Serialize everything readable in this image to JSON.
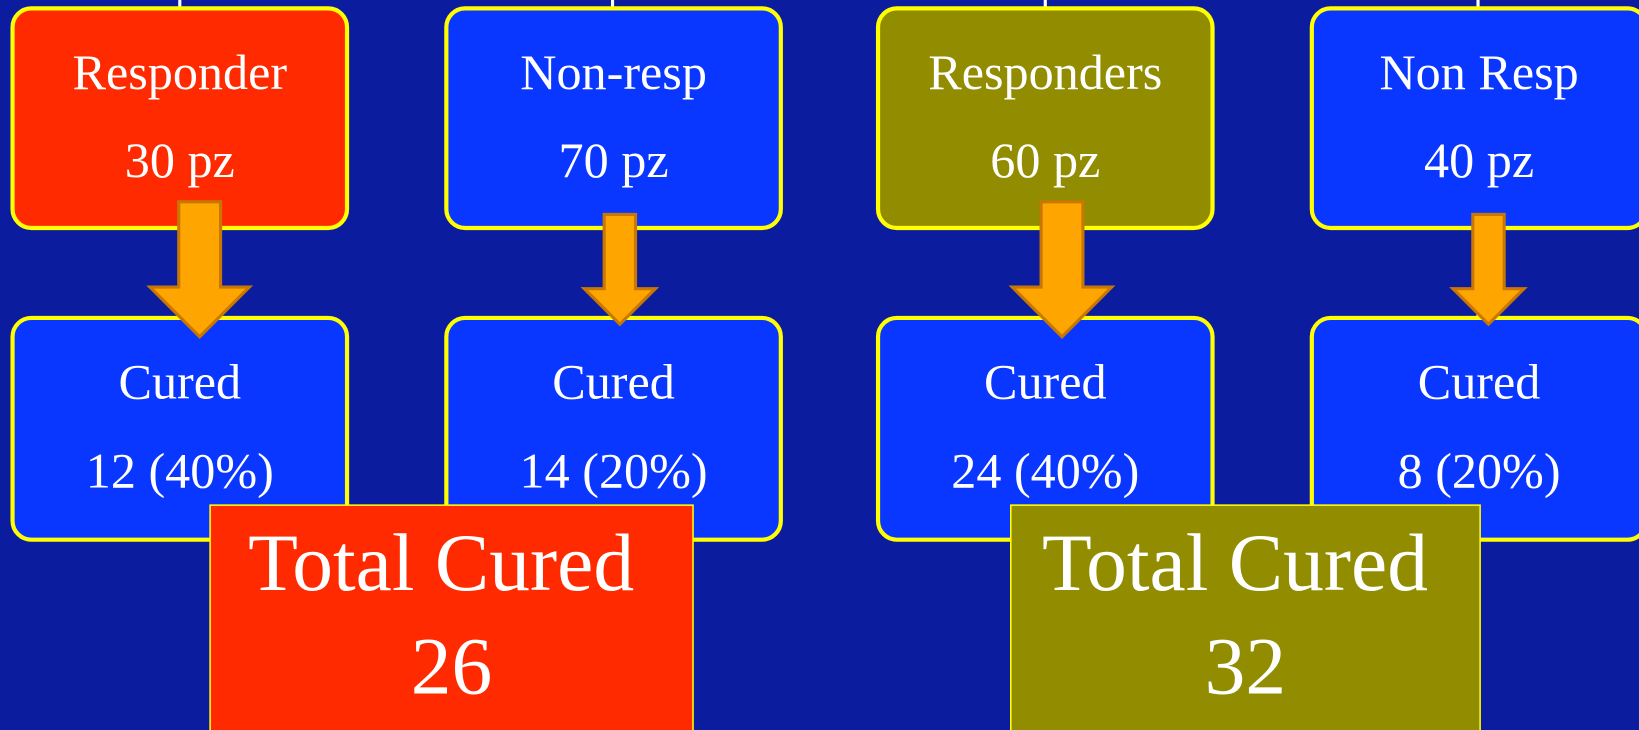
{
  "groups": [
    {
      "top": [
        {
          "label": "Responder",
          "count": "30 pz"
        },
        {
          "label": "Non-resp",
          "count": "70 pz"
        }
      ],
      "cured": [
        {
          "label": "Cured",
          "value": "12 (40%)"
        },
        {
          "label": "Cured",
          "value": "14 (20%)"
        }
      ],
      "total": {
        "label": "Total Cured",
        "value": "26"
      }
    },
    {
      "top": [
        {
          "label": "Responders",
          "count": "60 pz"
        },
        {
          "label": "Non Resp",
          "count": "40 pz"
        }
      ],
      "cured": [
        {
          "label": "Cured",
          "value": "24 (40%)"
        },
        {
          "label": "Cured",
          "value": "8 (20%)"
        }
      ],
      "total": {
        "label": "Total Cured",
        "value": "32"
      }
    }
  ]
}
